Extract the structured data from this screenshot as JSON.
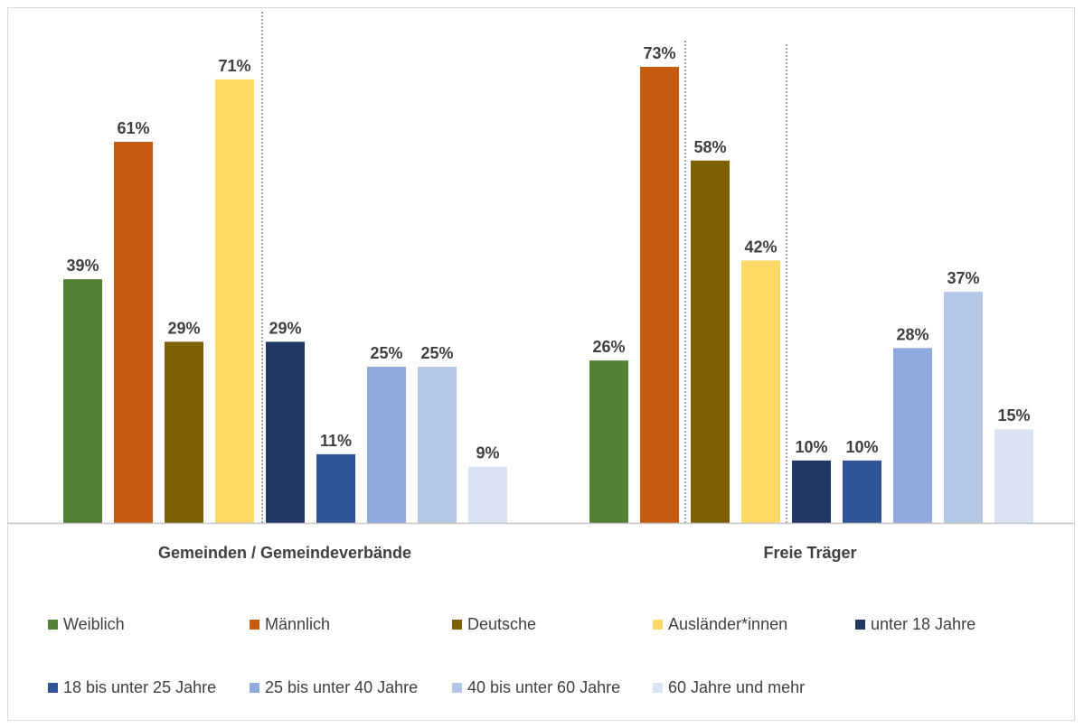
{
  "chart_data": {
    "type": "bar",
    "categories": [
      "Gemeinden / Gemeindeverbände",
      "Freie Träger"
    ],
    "series": [
      {
        "name": "Weiblich",
        "values": [
          39,
          26
        ],
        "labels": [
          "39%",
          "26%"
        ],
        "color": "#538135"
      },
      {
        "name": "Männlich",
        "values": [
          61,
          73
        ],
        "labels": [
          "61%",
          "73%"
        ],
        "color": "#C55A11"
      },
      {
        "name": "Deutsche",
        "values": [
          29,
          58
        ],
        "labels": [
          "29%",
          "58%"
        ],
        "color": "#7F6000"
      },
      {
        "name": "Ausländer*innen",
        "values": [
          71,
          42
        ],
        "labels": [
          "71%",
          "42%"
        ],
        "color": "#FFD966"
      },
      {
        "name": "unter 18 Jahre",
        "values": [
          29,
          10
        ],
        "labels": [
          "29%",
          "10%"
        ],
        "color": "#203864"
      },
      {
        "name": "18 bis unter 25 Jahre",
        "values": [
          11,
          10
        ],
        "labels": [
          "11%",
          "10%"
        ],
        "color": "#2F5597"
      },
      {
        "name": "25 bis unter 40 Jahre",
        "values": [
          25,
          28
        ],
        "labels": [
          "25%",
          "28%"
        ],
        "color": "#8FAADC"
      },
      {
        "name": "40 bis unter 60 Jahre",
        "values": [
          25,
          37
        ],
        "labels": [
          "25%",
          "37%"
        ],
        "color": "#B4C7E7"
      },
      {
        "name": "60 Jahre und mehr",
        "values": [
          9,
          15
        ],
        "labels": [
          "9%",
          "15%"
        ],
        "color": "#DAE3F3"
      }
    ],
    "ylim": [
      0,
      75
    ],
    "grid": false,
    "legend_position": "bottom",
    "dashed_separators": true
  }
}
